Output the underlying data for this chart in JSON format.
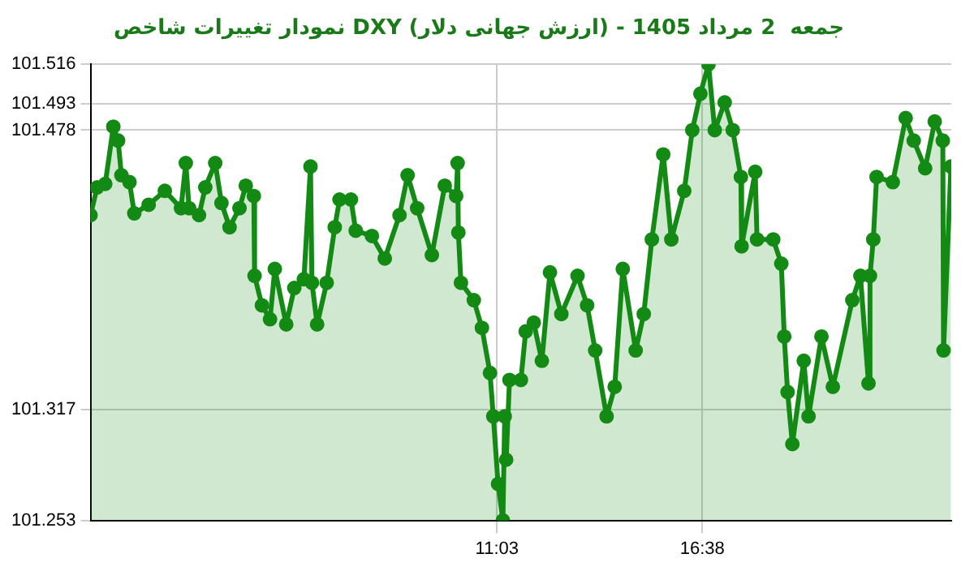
{
  "chart_data": {
    "type": "area",
    "title": "نمودار تغییرات شاخص DXY (ارزش جهانی دلار) - جمعه  2 مرداد 1405",
    "x": [
      0,
      0.18,
      0.4,
      0.62,
      0.75,
      0.84,
      1.06,
      1.19,
      1.58,
      2.02,
      2.46,
      2.59,
      2.68,
      2.95,
      3.12,
      3.39,
      3.56,
      3.78,
      4.05,
      4.22,
      4.44,
      4.46,
      4.66,
      4.88,
      5.01,
      5.32,
      5.54,
      5.8,
      5.98,
      6.02,
      6.16,
      6.42,
      6.64,
      6.77,
      7.08,
      7.21,
      7.65,
      8,
      8.4,
      8.62,
      8.88,
      9.28,
      9.63,
      9.94,
      9.98,
      10,
      10.07,
      10.42,
      10.64,
      10.86,
      10.95,
      11.08,
      11.21,
      11.26,
      11.3,
      11.39,
      11.7,
      11.83,
      12.05,
      12.27,
      12.49,
      12.8,
      13.24,
      13.5,
      13.72,
      14.03,
      14.25,
      14.47,
      14.82,
      15.04,
      15.26,
      15.57,
      15.79,
      16.14,
      16.36,
      16.58,
      16.8,
      16.97,
      17.24,
      17.46,
      17.68,
      17.7,
      18.07,
      18.12,
      18.56,
      18.78,
      18.86,
      18.95,
      19.08,
      19.39,
      19.52,
      19.87,
      20.18,
      20.71,
      20.93,
      21.15,
      21.19,
      21.28,
      21.37,
      21.81,
      22.16,
      22.38,
      22.69,
      22.95,
      23.17,
      23.19,
      23.39
    ],
    "series": [
      {
        "color": "#138a13",
        "values": [
          101.429,
          101.445,
          101.447,
          101.48,
          101.472,
          101.452,
          101.448,
          101.43,
          101.435,
          101.443,
          101.433,
          101.459,
          101.433,
          101.429,
          101.445,
          101.459,
          101.436,
          101.422,
          101.433,
          101.446,
          101.44,
          101.394,
          101.377,
          101.369,
          101.398,
          101.366,
          101.387,
          101.392,
          101.457,
          101.39,
          101.366,
          101.39,
          101.422,
          101.438,
          101.438,
          101.42,
          101.417,
          101.404,
          101.429,
          101.452,
          101.433,
          101.406,
          101.446,
          101.44,
          101.459,
          101.419,
          101.39,
          101.38,
          101.364,
          101.338,
          101.313,
          101.274,
          101.253,
          101.313,
          101.288,
          101.334,
          101.334,
          101.362,
          101.367,
          101.345,
          101.396,
          101.372,
          101.394,
          101.377,
          101.351,
          101.313,
          101.33,
          101.398,
          101.351,
          101.372,
          101.415,
          101.464,
          101.415,
          101.443,
          101.478,
          101.499,
          101.516,
          101.478,
          101.494,
          101.478,
          101.451,
          101.411,
          101.454,
          101.415,
          101.415,
          101.401,
          101.359,
          101.327,
          101.297,
          101.345,
          101.313,
          101.359,
          101.33,
          101.38,
          101.394,
          101.332,
          101.394,
          101.415,
          101.451,
          101.448,
          101.485,
          101.472,
          101.456,
          101.483,
          101.472,
          101.351,
          101.457
        ]
      }
    ],
    "xlim": [
      0,
      23.4
    ],
    "xticks": [
      {
        "value": 11.05,
        "label": "11:03"
      },
      {
        "value": 16.63,
        "label": "16:38"
      }
    ],
    "ylim": [
      101.253,
      101.516
    ],
    "yticks": [
      101.253,
      101.317,
      101.478,
      101.493,
      101.516
    ],
    "grid": true,
    "marker": "circle",
    "line_style": "solid",
    "legend": false
  }
}
